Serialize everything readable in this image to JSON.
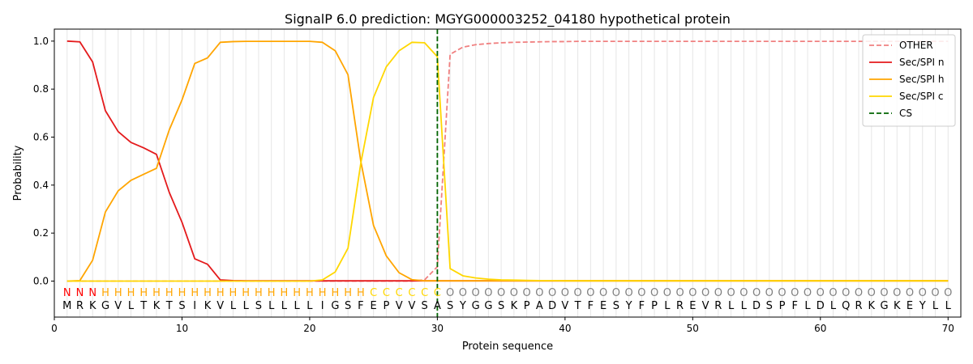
{
  "chart_data": {
    "type": "line",
    "title": "SignalP 6.0 prediction: MGYG000003252_04180 hypothetical protein",
    "xlabel": "Protein sequence",
    "ylabel": "Probability",
    "xlim": [
      0,
      71
    ],
    "ylim": [
      -0.15,
      1.05
    ],
    "x_ticks": [
      0,
      10,
      20,
      30,
      40,
      50,
      60,
      70
    ],
    "y_ticks": [
      0.0,
      0.2,
      0.4,
      0.6,
      0.8,
      1.0
    ],
    "x_tick_labels": [
      "0",
      "10",
      "20",
      "30",
      "40",
      "50",
      "60",
      "70"
    ],
    "y_tick_labels": [
      "0.0",
      "0.2",
      "0.4",
      "0.6",
      "0.8",
      "1.0"
    ],
    "sequence": [
      "M",
      "R",
      "K",
      "G",
      "V",
      "L",
      "T",
      "K",
      "T",
      "S",
      "I",
      "K",
      "V",
      "L",
      "L",
      "S",
      "L",
      "L",
      "L",
      "L",
      "I",
      "G",
      "S",
      "F",
      "E",
      "P",
      "V",
      "V",
      "S",
      "A",
      "S",
      "Y",
      "G",
      "G",
      "S",
      "K",
      "P",
      "A",
      "D",
      "V",
      "T",
      "F",
      "E",
      "S",
      "Y",
      "F",
      "P",
      "L",
      "R",
      "E",
      "V",
      "R",
      "L",
      "L",
      "D",
      "S",
      "P",
      "F",
      "L",
      "D",
      "L",
      "Q",
      "R",
      "K",
      "G",
      "K",
      "E",
      "Y",
      "L",
      "L"
    ],
    "labels": [
      "N",
      "N",
      "N",
      "H",
      "H",
      "H",
      "H",
      "H",
      "H",
      "H",
      "H",
      "H",
      "H",
      "H",
      "H",
      "H",
      "H",
      "H",
      "H",
      "H",
      "H",
      "H",
      "H",
      "H",
      "C",
      "C",
      "C",
      "C",
      "C",
      "C",
      "O",
      "O",
      "O",
      "O",
      "O",
      "O",
      "O",
      "O",
      "O",
      "O",
      "O",
      "O",
      "O",
      "O",
      "O",
      "O",
      "O",
      "O",
      "O",
      "O",
      "O",
      "O",
      "O",
      "O",
      "O",
      "O",
      "O",
      "O",
      "O",
      "O",
      "O",
      "O",
      "O",
      "O",
      "O",
      "O",
      "O",
      "O",
      "O",
      "O"
    ],
    "label_colors": {
      "N": "#ff0000",
      "H": "#ffa500",
      "C": "#ffd700",
      "O": "#808080"
    },
    "cleavage_site": 30,
    "legend_position": "top-right",
    "grid": "vertical lines at each residue",
    "series": [
      {
        "name": "OTHER",
        "color": "#f08080",
        "dash": true,
        "values": [
          0,
          0,
          0,
          0,
          0,
          0,
          0,
          0,
          0,
          0,
          0,
          0,
          0,
          0,
          0,
          0,
          0,
          0,
          0,
          0,
          0,
          0,
          0,
          0,
          0,
          0,
          0,
          0,
          0.005,
          0.06,
          0.945,
          0.975,
          0.985,
          0.99,
          0.993,
          0.995,
          0.996,
          0.997,
          0.998,
          0.998,
          0.999,
          0.999,
          0.999,
          0.999,
          0.999,
          0.999,
          0.999,
          0.999,
          0.999,
          0.999,
          0.999,
          0.999,
          0.999,
          0.999,
          0.999,
          0.999,
          0.999,
          0.999,
          0.999,
          0.999,
          0.999,
          0.999,
          0.999,
          0.999,
          0.999,
          0.999,
          0.999,
          0.999,
          0.999,
          0.999
        ]
      },
      {
        "name": "Sec/SPI n",
        "color": "#e41a1c",
        "dash": false,
        "values": [
          1.0,
          0.997,
          0.913,
          0.71,
          0.623,
          0.578,
          0.555,
          0.528,
          0.37,
          0.245,
          0.093,
          0.07,
          0.005,
          0.002,
          0.001,
          0.001,
          0.001,
          0.001,
          0.001,
          0.001,
          0.001,
          0.001,
          0.001,
          0.001,
          0.001,
          0.001,
          0.001,
          0.001,
          0.001,
          0.001,
          0.001,
          0.001,
          0.001,
          0.001,
          0.001,
          0.001,
          0.001,
          0.001,
          0.001,
          0.001,
          0.001,
          0.001,
          0.001,
          0.001,
          0.001,
          0.001,
          0.001,
          0.001,
          0.001,
          0.001,
          0.001,
          0.001,
          0.001,
          0.001,
          0.001,
          0.001,
          0.001,
          0.001,
          0.001,
          0.001,
          0.001,
          0.001,
          0.001,
          0.001,
          0.001,
          0.001,
          0.001,
          0.001,
          0.001,
          0.001
        ]
      },
      {
        "name": "Sec/SPI h",
        "color": "#ffa500",
        "dash": false,
        "values": [
          0,
          0.002,
          0.087,
          0.288,
          0.376,
          0.42,
          0.445,
          0.47,
          0.63,
          0.755,
          0.907,
          0.93,
          0.995,
          0.998,
          0.999,
          0.999,
          0.999,
          0.999,
          0.999,
          0.999,
          0.995,
          0.96,
          0.86,
          0.5,
          0.232,
          0.105,
          0.035,
          0.006,
          0.001,
          0.001,
          0.001,
          0.001,
          0.001,
          0.001,
          0.001,
          0.001,
          0.001,
          0.001,
          0.001,
          0.001,
          0.001,
          0.001,
          0.001,
          0.001,
          0.001,
          0.001,
          0.001,
          0.001,
          0.001,
          0.001,
          0.001,
          0.001,
          0.001,
          0.001,
          0.001,
          0.001,
          0.001,
          0.001,
          0.001,
          0.001,
          0.001,
          0.001,
          0.001,
          0.001,
          0.001,
          0.001,
          0.001,
          0.001,
          0.001,
          0.001
        ]
      },
      {
        "name": "Sec/SPI c",
        "color": "#ffd700",
        "dash": false,
        "values": [
          0,
          0,
          0,
          0,
          0,
          0,
          0,
          0,
          0,
          0,
          0,
          0,
          0,
          0,
          0,
          0,
          0,
          0,
          0,
          0,
          0.005,
          0.038,
          0.137,
          0.49,
          0.765,
          0.893,
          0.96,
          0.995,
          0.993,
          0.935,
          0.052,
          0.022,
          0.013,
          0.008,
          0.005,
          0.004,
          0.003,
          0.002,
          0.002,
          0.001,
          0.001,
          0.001,
          0.001,
          0.001,
          0.001,
          0.001,
          0.001,
          0.001,
          0.001,
          0.001,
          0.001,
          0.001,
          0.001,
          0.001,
          0.001,
          0.001,
          0.001,
          0.001,
          0.001,
          0.001,
          0.001,
          0.001,
          0.001,
          0.001,
          0.001,
          0.001,
          0.001,
          0.001,
          0.001,
          0.001
        ]
      }
    ],
    "cs_series": {
      "name": "CS",
      "color": "#006400",
      "dash": true
    }
  }
}
